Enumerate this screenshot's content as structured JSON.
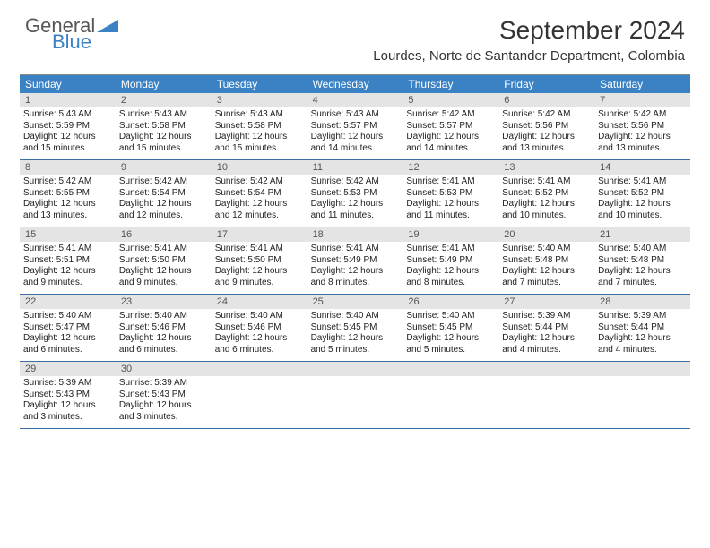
{
  "brand": {
    "general": "General",
    "blue": "Blue"
  },
  "title": "September 2024",
  "location": "Lourdes, Norte de Santander Department, Colombia",
  "header_bg": "#3b82c4",
  "daynum_bg": "#e4e4e4",
  "week_border": "#3b6fa0",
  "day_names": [
    "Sunday",
    "Monday",
    "Tuesday",
    "Wednesday",
    "Thursday",
    "Friday",
    "Saturday"
  ],
  "weeks": [
    [
      {
        "n": "1",
        "sr": "5:43 AM",
        "ss": "5:59 PM",
        "d1": "12 hours",
        "d2": "and 15 minutes."
      },
      {
        "n": "2",
        "sr": "5:43 AM",
        "ss": "5:58 PM",
        "d1": "12 hours",
        "d2": "and 15 minutes."
      },
      {
        "n": "3",
        "sr": "5:43 AM",
        "ss": "5:58 PM",
        "d1": "12 hours",
        "d2": "and 15 minutes."
      },
      {
        "n": "4",
        "sr": "5:43 AM",
        "ss": "5:57 PM",
        "d1": "12 hours",
        "d2": "and 14 minutes."
      },
      {
        "n": "5",
        "sr": "5:42 AM",
        "ss": "5:57 PM",
        "d1": "12 hours",
        "d2": "and 14 minutes."
      },
      {
        "n": "6",
        "sr": "5:42 AM",
        "ss": "5:56 PM",
        "d1": "12 hours",
        "d2": "and 13 minutes."
      },
      {
        "n": "7",
        "sr": "5:42 AM",
        "ss": "5:56 PM",
        "d1": "12 hours",
        "d2": "and 13 minutes."
      }
    ],
    [
      {
        "n": "8",
        "sr": "5:42 AM",
        "ss": "5:55 PM",
        "d1": "12 hours",
        "d2": "and 13 minutes."
      },
      {
        "n": "9",
        "sr": "5:42 AM",
        "ss": "5:54 PM",
        "d1": "12 hours",
        "d2": "and 12 minutes."
      },
      {
        "n": "10",
        "sr": "5:42 AM",
        "ss": "5:54 PM",
        "d1": "12 hours",
        "d2": "and 12 minutes."
      },
      {
        "n": "11",
        "sr": "5:42 AM",
        "ss": "5:53 PM",
        "d1": "12 hours",
        "d2": "and 11 minutes."
      },
      {
        "n": "12",
        "sr": "5:41 AM",
        "ss": "5:53 PM",
        "d1": "12 hours",
        "d2": "and 11 minutes."
      },
      {
        "n": "13",
        "sr": "5:41 AM",
        "ss": "5:52 PM",
        "d1": "12 hours",
        "d2": "and 10 minutes."
      },
      {
        "n": "14",
        "sr": "5:41 AM",
        "ss": "5:52 PM",
        "d1": "12 hours",
        "d2": "and 10 minutes."
      }
    ],
    [
      {
        "n": "15",
        "sr": "5:41 AM",
        "ss": "5:51 PM",
        "d1": "12 hours",
        "d2": "and 9 minutes."
      },
      {
        "n": "16",
        "sr": "5:41 AM",
        "ss": "5:50 PM",
        "d1": "12 hours",
        "d2": "and 9 minutes."
      },
      {
        "n": "17",
        "sr": "5:41 AM",
        "ss": "5:50 PM",
        "d1": "12 hours",
        "d2": "and 9 minutes."
      },
      {
        "n": "18",
        "sr": "5:41 AM",
        "ss": "5:49 PM",
        "d1": "12 hours",
        "d2": "and 8 minutes."
      },
      {
        "n": "19",
        "sr": "5:41 AM",
        "ss": "5:49 PM",
        "d1": "12 hours",
        "d2": "and 8 minutes."
      },
      {
        "n": "20",
        "sr": "5:40 AM",
        "ss": "5:48 PM",
        "d1": "12 hours",
        "d2": "and 7 minutes."
      },
      {
        "n": "21",
        "sr": "5:40 AM",
        "ss": "5:48 PM",
        "d1": "12 hours",
        "d2": "and 7 minutes."
      }
    ],
    [
      {
        "n": "22",
        "sr": "5:40 AM",
        "ss": "5:47 PM",
        "d1": "12 hours",
        "d2": "and 6 minutes."
      },
      {
        "n": "23",
        "sr": "5:40 AM",
        "ss": "5:46 PM",
        "d1": "12 hours",
        "d2": "and 6 minutes."
      },
      {
        "n": "24",
        "sr": "5:40 AM",
        "ss": "5:46 PM",
        "d1": "12 hours",
        "d2": "and 6 minutes."
      },
      {
        "n": "25",
        "sr": "5:40 AM",
        "ss": "5:45 PM",
        "d1": "12 hours",
        "d2": "and 5 minutes."
      },
      {
        "n": "26",
        "sr": "5:40 AM",
        "ss": "5:45 PM",
        "d1": "12 hours",
        "d2": "and 5 minutes."
      },
      {
        "n": "27",
        "sr": "5:39 AM",
        "ss": "5:44 PM",
        "d1": "12 hours",
        "d2": "and 4 minutes."
      },
      {
        "n": "28",
        "sr": "5:39 AM",
        "ss": "5:44 PM",
        "d1": "12 hours",
        "d2": "and 4 minutes."
      }
    ],
    [
      {
        "n": "29",
        "sr": "5:39 AM",
        "ss": "5:43 PM",
        "d1": "12 hours",
        "d2": "and 3 minutes."
      },
      {
        "n": "30",
        "sr": "5:39 AM",
        "ss": "5:43 PM",
        "d1": "12 hours",
        "d2": "and 3 minutes."
      },
      null,
      null,
      null,
      null,
      null
    ]
  ],
  "labels": {
    "sunrise": "Sunrise:",
    "sunset": "Sunset:",
    "daylight": "Daylight:"
  }
}
